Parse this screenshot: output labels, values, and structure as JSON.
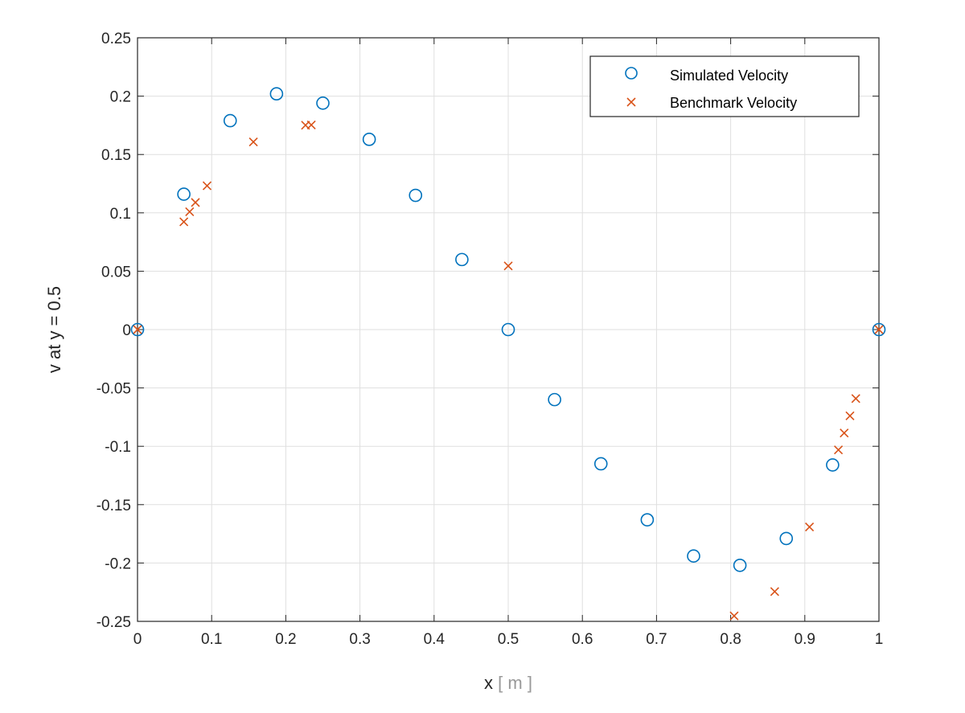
{
  "chart_data": {
    "type": "scatter",
    "title": "",
    "xlabel": "x",
    "xlabel_unit": "[ m ]",
    "ylabel": "v at y = 0.5",
    "xlim": [
      0,
      1
    ],
    "ylim": [
      -0.25,
      0.25
    ],
    "xticks": [
      0,
      0.1,
      0.2,
      0.3,
      0.4,
      0.5,
      0.6,
      0.7,
      0.8,
      0.9,
      1
    ],
    "yticks": [
      -0.25,
      -0.2,
      -0.15,
      -0.1,
      -0.05,
      0,
      0.05,
      0.1,
      0.15,
      0.2,
      0.25
    ],
    "xtick_labels": [
      "0",
      "0.1",
      "0.2",
      "0.3",
      "0.4",
      "0.5",
      "0.6",
      "0.7",
      "0.8",
      "0.9",
      "1"
    ],
    "ytick_labels": [
      "-0.25",
      "-0.2",
      "-0.15",
      "-0.1",
      "-0.05",
      "0",
      "0.05",
      "0.1",
      "0.15",
      "0.2",
      "0.25"
    ],
    "grid": true,
    "legend_position": "top-right",
    "series": [
      {
        "name": "Simulated Velocity",
        "marker": "circle",
        "color": "#0072BD",
        "x": [
          0,
          0.0625,
          0.125,
          0.1875,
          0.25,
          0.3125,
          0.375,
          0.4375,
          0.5,
          0.5625,
          0.625,
          0.6875,
          0.75,
          0.8125,
          0.875,
          0.9375,
          1
        ],
        "y": [
          0,
          0.116,
          0.179,
          0.202,
          0.194,
          0.163,
          0.115,
          0.06,
          0,
          -0.06,
          -0.115,
          -0.163,
          -0.194,
          -0.202,
          -0.179,
          -0.116,
          0
        ]
      },
      {
        "name": "Benchmark Velocity",
        "marker": "x",
        "color": "#D95319",
        "x": [
          0,
          0.0625,
          0.0703,
          0.0781,
          0.0938,
          0.1563,
          0.2266,
          0.2344,
          0.5,
          0.8047,
          0.8594,
          0.9063,
          0.9453,
          0.9531,
          0.9609,
          0.9688,
          1
        ],
        "y": [
          0,
          0.0923,
          0.1009,
          0.1089,
          0.1232,
          0.1608,
          0.1751,
          0.1753,
          0.0545,
          -0.2453,
          -0.2245,
          -0.1691,
          -0.1031,
          -0.0886,
          -0.0739,
          -0.0591,
          0
        ]
      }
    ]
  }
}
